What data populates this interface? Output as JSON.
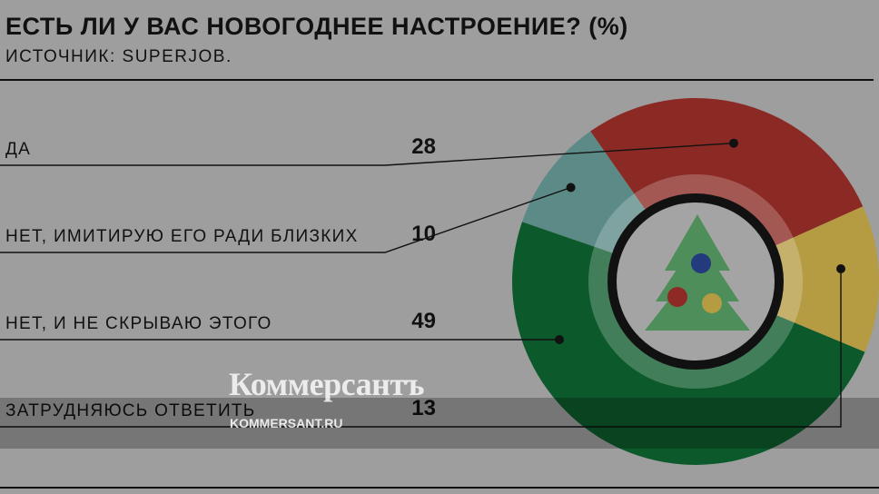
{
  "chart_data": {
    "type": "pie",
    "title": "ЕСТЬ ЛИ У ВАС НОВОГОДНЕЕ НАСТРОЕНИЕ? (%)",
    "subtitle": "ИСТОЧНИК: SUPERJOB.",
    "categories": [
      "ДА",
      "НЕТ, ИМИТИРУЮ ЕГО РАДИ БЛИЗКИХ",
      "НЕТ, И НЕ СКРЫВАЮ ЭТОГО",
      "ЗАТРУДНЯЮСЬ ОТВЕТИТЬ"
    ],
    "values": [
      28,
      10,
      49,
      13
    ],
    "colors": [
      "#8b2a24",
      "#5c8a87",
      "#0c5a2b",
      "#b59b42"
    ],
    "value_labels": [
      "28",
      "10",
      "49",
      "13"
    ]
  },
  "watermark": {
    "logo": "Коммерсантъ",
    "url": "KOMMERSANT.RU"
  }
}
